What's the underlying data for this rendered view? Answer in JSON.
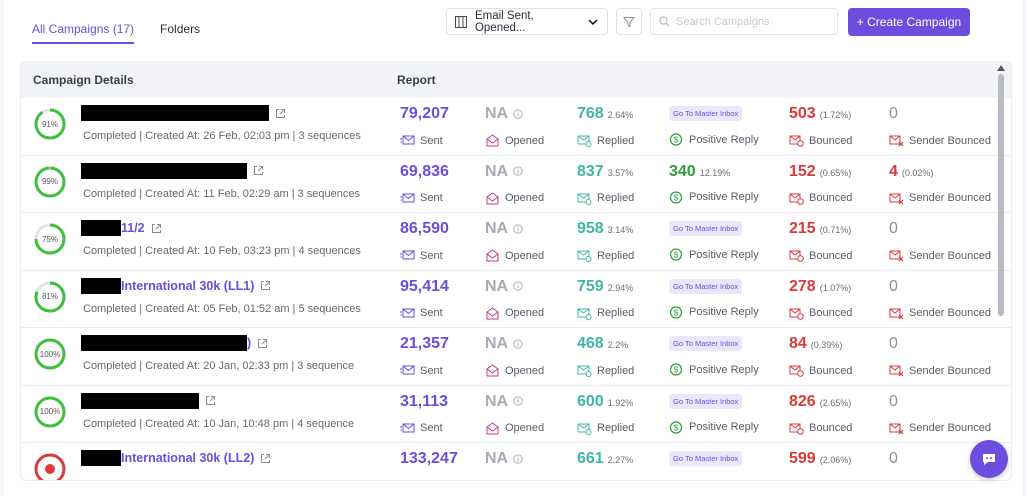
{
  "tabs": [
    {
      "label": "All Campaigns (17)",
      "active": true
    },
    {
      "label": "Folders",
      "active": false
    }
  ],
  "toolbar": {
    "columns_select": "Email Sent, Opened...",
    "search_placeholder": "Search Campaigns",
    "create_button": "+ Create Campaign"
  },
  "table": {
    "headers": {
      "details": "Campaign Details",
      "report": "Report"
    },
    "labels": {
      "sent": "Sent",
      "opened": "Opened",
      "replied": "Replied",
      "positive": "Positive Reply",
      "bounced": "Bounced",
      "sender_bounced": "Sender Bounced",
      "master_inbox": "Go To Master Inbox",
      "na": "NA"
    },
    "rows": [
      {
        "progress": "91%",
        "progress_value": 0.91,
        "name_visible": "",
        "subtitle": "Completed | Created At: 26 Feb, 02:03 pm | 3 sequences",
        "sent": "79,207",
        "replied": "768",
        "replied_pct": "2.64%",
        "positive": "",
        "positive_pct": "",
        "bounced": "503",
        "bounced_pct": "(1.72%)",
        "sender_bounced": "0",
        "sender_bounced_pct": ""
      },
      {
        "progress": "99%",
        "progress_value": 0.99,
        "name_visible": "",
        "subtitle": "Completed | Created At: 11 Feb, 02:29 am | 3 sequences",
        "sent": "69,836",
        "replied": "837",
        "replied_pct": "3.57%",
        "positive": "340",
        "positive_pct": "12.19%",
        "bounced": "152",
        "bounced_pct": "(0.65%)",
        "sender_bounced": "4",
        "sender_bounced_pct": "(0.02%)"
      },
      {
        "progress": "75%",
        "progress_value": 0.75,
        "name_visible": "11/2",
        "subtitle": "Completed | Created At: 10 Feb, 03:23 pm | 4 sequences",
        "sent": "86,590",
        "replied": "958",
        "replied_pct": "3.14%",
        "positive": "",
        "positive_pct": "",
        "bounced": "215",
        "bounced_pct": "(0.71%)",
        "sender_bounced": "0",
        "sender_bounced_pct": ""
      },
      {
        "progress": "81%",
        "progress_value": 0.81,
        "name_visible": "International 30k (LL1)",
        "subtitle": "Completed | Created At: 05 Feb, 01:52 am | 5 sequences",
        "sent": "95,414",
        "replied": "759",
        "replied_pct": "2.94%",
        "positive": "",
        "positive_pct": "",
        "bounced": "278",
        "bounced_pct": "(1.07%)",
        "sender_bounced": "0",
        "sender_bounced_pct": ""
      },
      {
        "progress": "100%",
        "progress_value": 1.0,
        "name_visible": ")",
        "subtitle": "Completed | Created At: 20 Jan, 02:33 pm | 3 sequence",
        "sent": "21,357",
        "replied": "468",
        "replied_pct": "2.2%",
        "positive": "",
        "positive_pct": "",
        "bounced": "84",
        "bounced_pct": "(0.39%)",
        "sender_bounced": "0",
        "sender_bounced_pct": ""
      },
      {
        "progress": "100%",
        "progress_value": 1.0,
        "name_visible": "",
        "subtitle": "Completed | Created At: 10 Jan, 10:48 pm | 4 sequence",
        "sent": "31,113",
        "replied": "600",
        "replied_pct": "1.92%",
        "positive": "",
        "positive_pct": "",
        "bounced": "826",
        "bounced_pct": "(2.65%)",
        "sender_bounced": "0",
        "sender_bounced_pct": ""
      },
      {
        "progress": "",
        "progress_value": 0,
        "name_visible": "International 30k (LL2)",
        "subtitle": "",
        "sent": "133,247",
        "replied": "661",
        "replied_pct": "2.27%",
        "positive": "",
        "positive_pct": "",
        "bounced": "599",
        "bounced_pct": "(2.06%)",
        "sender_bounced": "0",
        "sender_bounced_pct": ""
      }
    ]
  },
  "colors": {
    "accent": "#6c4dde",
    "ring_green": "#3dc13c",
    "ring_red": "#d93a3a",
    "replied": "#3fb6a8",
    "positive": "#2c9f3a",
    "bounced": "#d93a3a"
  }
}
